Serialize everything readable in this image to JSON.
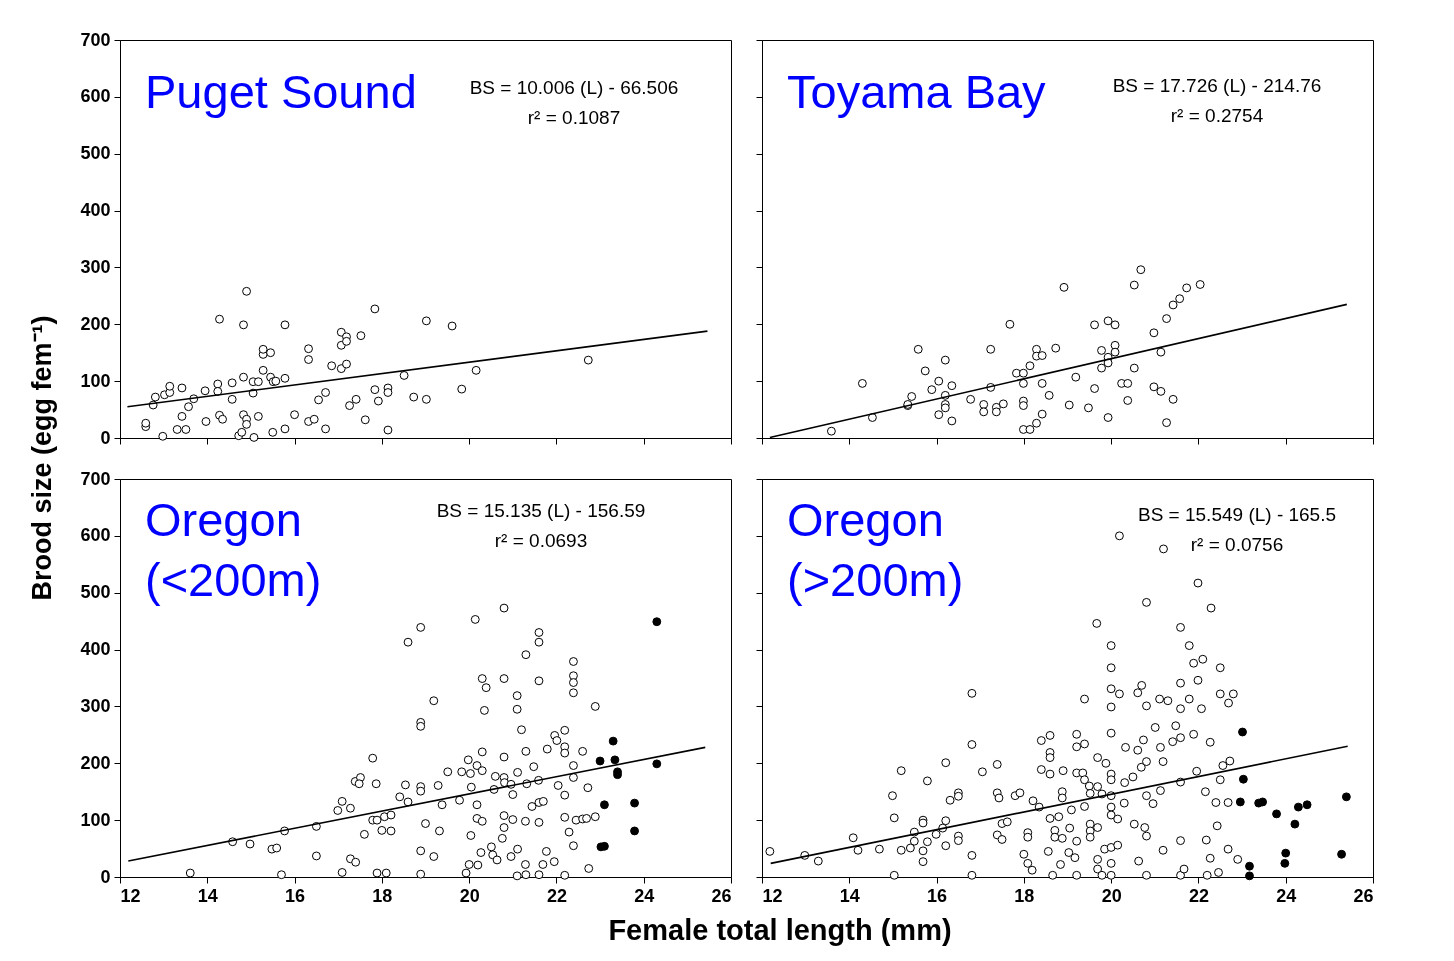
{
  "chart_data": [
    {
      "type": "scatter",
      "title": "Puget Sound",
      "ylabel": "Brood size (egg fem⁻¹)",
      "annotations": [
        "BS = 10.006 (L) - 66.506",
        "r² = 0.1087"
      ],
      "xlim": [
        12,
        26
      ],
      "ylim": [
        0,
        700
      ],
      "xticks": [
        12,
        14,
        16,
        18,
        20,
        22,
        24,
        26
      ],
      "yticks": [
        0,
        100,
        200,
        300,
        400,
        500,
        600,
        700
      ],
      "tick_labels": "y",
      "series": [
        {
          "color": "#ffffff",
          "marker": "circle",
          "x": [
            12.59,
            12.59,
            12.98,
            12.76,
            12.81,
            13.02,
            13.14,
            13.14,
            13.31,
            13.51,
            13.42,
            13.42,
            13.57,
            13.69,
            13.95,
            13.97,
            14.24,
            14.24,
            14.28,
            14.35,
            14.28,
            14.57,
            14.57,
            14.83,
            14.83,
            14.9,
            14.83,
            14.9,
            14.9,
            14.72,
            14.79,
            15.07,
            15.05,
            15.05,
            15.17,
            15.17,
            15.28,
            15.28,
            15.28,
            15.45,
            15.45,
            15.51,
            15.57,
            15.5,
            15.78,
            15.78,
            15.78,
            16.0,
            16.32,
            16.32,
            16.32,
            16.45,
            16.55,
            16.71,
            16.71,
            16.85,
            17.07,
            17.07,
            17.07,
            17.19,
            17.19,
            17.19,
            17.26,
            17.41,
            17.52,
            17.62,
            17.84,
            17.84,
            17.92,
            18.14,
            18.14,
            18.14,
            18.51,
            18.73,
            19.02,
            19.02,
            19.61,
            19.83,
            20.16,
            22.73
          ],
          "values": [
            20,
            26,
            3,
            58,
            72,
            76,
            80,
            91,
            15,
            15,
            38,
            88,
            55,
            69,
            83,
            29,
            95,
            82,
            40,
            33,
            209,
            97,
            68,
            107,
            199,
            258,
            41,
            33,
            24,
            4,
            10,
            1,
            79,
            99,
            99,
            38,
            119,
            147,
            156,
            150,
            107,
            99,
            100,
            10,
            105,
            199,
            16,
            41,
            157,
            138,
            29,
            33,
            67,
            80,
            16,
            127,
            122,
            163,
            186,
            178,
            170,
            130,
            57,
            68,
            180,
            32,
            85,
            227,
            65,
            88,
            80,
            14,
            110,
            72,
            68,
            206,
            197,
            86,
            119,
            137
          ]
        },
        {
          "type": "line",
          "color": "#000000",
          "marker": "none",
          "x": [
            12.17,
            25.46
          ],
          "values": [
            55,
            188
          ]
        }
      ]
    },
    {
      "type": "scatter",
      "title": "Toyama Bay",
      "annotations": [
        "BS = 17.726 (L) - 214.76",
        "r² = 0.2754"
      ],
      "xlim": [
        12,
        26
      ],
      "ylim": [
        0,
        700
      ],
      "xticks": [
        12,
        14,
        16,
        18,
        20,
        22,
        24,
        26
      ],
      "yticks": [
        0,
        100,
        200,
        300,
        400,
        500,
        600,
        700
      ],
      "tick_labels": false,
      "series": [
        {
          "color": "#ffffff",
          "marker": "circle",
          "x": [
            13.59,
            14.3,
            14.53,
            15.34,
            15.34,
            15.43,
            15.58,
            15.74,
            15.89,
            16.05,
            16.05,
            16.2,
            16.2,
            16.2,
            16.2,
            16.35,
            16.35,
            16.78,
            17.08,
            17.08,
            17.24,
            17.24,
            17.37,
            17.37,
            17.53,
            17.68,
            17.83,
            17.99,
            17.99,
            17.99,
            17.99,
            17.99,
            18.14,
            18.14,
            18.29,
            18.29,
            18.42,
            18.42,
            18.42,
            18.29,
            18.58,
            18.73,
            18.92,
            19.04,
            19.19,
            19.48,
            19.62,
            19.62,
            19.78,
            19.78,
            19.93,
            19.93,
            19.93,
            19.93,
            20.09,
            20.09,
            20.09,
            20.24,
            20.38,
            20.38,
            20.53,
            20.53,
            20.68,
            20.98,
            20.98,
            21.14,
            21.14,
            21.27,
            21.27,
            21.42,
            21.42,
            21.57,
            21.73,
            22.04
          ],
          "values": [
            12,
            96,
            36,
            57,
            59,
            73,
            156,
            118,
            85,
            100,
            41,
            137,
            75,
            59,
            53,
            92,
            30,
            68,
            59,
            46,
            89,
            156,
            54,
            46,
            60,
            200,
            114,
            114,
            96,
            65,
            57,
            15,
            15,
            127,
            156,
            144,
            145,
            96,
            42,
            26,
            75,
            158,
            265,
            58,
            107,
            53,
            199,
            87,
            154,
            123,
            206,
            142,
            132,
            36,
            199,
            163,
            151,
            96,
            96,
            66,
            269,
            123,
            296,
            185,
            90,
            151,
            82,
            210,
            27,
            234,
            68,
            245,
            264,
            270
          ]
        },
        {
          "type": "line",
          "color": "#000000",
          "marker": "none",
          "x": [
            12.18,
            25.4
          ],
          "values": [
            1,
            235
          ]
        }
      ]
    },
    {
      "type": "scatter",
      "title": "Oregon (<200m)",
      "xlabel": "Female total length (mm)",
      "annotations": [
        "BS = 15.135 (L) - 156.59",
        "r² = 0.0693"
      ],
      "xlim": [
        12,
        26
      ],
      "ylim": [
        0,
        700
      ],
      "xticks": [
        12,
        14,
        16,
        18,
        20,
        22,
        24,
        26
      ],
      "yticks": [
        0,
        100,
        200,
        300,
        400,
        500,
        600,
        700
      ],
      "series": [
        {
          "color": "#ffffff",
          "marker": "circle",
          "x": [
            13.61,
            14.58,
            14.98,
            15.48,
            15.59,
            15.7,
            15.77,
            16.5,
            16.5,
            16.99,
            17.09,
            17.09,
            17.28,
            17.28,
            17.4,
            17.39,
            17.51,
            17.48,
            17.6,
            17.79,
            17.87,
            17.79,
            17.89,
            17.89,
            18.0,
            18.06,
            18.1,
            18.21,
            18.21,
            18.41,
            18.54,
            18.6,
            18.6,
            18.89,
            18.89,
            18.89,
            18.89,
            18.89,
            18.89,
            18.89,
            19.0,
            19.19,
            19.19,
            19.29,
            19.32,
            19.38,
            19.51,
            19.78,
            19.83,
            19.93,
            20.0,
            20.04,
            19.98,
            20.03,
            20.05,
            20.14,
            20.18,
            20.18,
            20.18,
            20.2,
            20.3,
            20.3,
            20.3,
            20.3,
            20.35,
            20.27,
            20.39,
            20.51,
            20.54,
            20.64,
            20.57,
            20.6,
            20.8,
            20.8,
            20.8,
            20.8,
            20.8,
            20.8,
            20.76,
            20.81,
            20.96,
            20.96,
            21.0,
            21.0,
            21.1,
            21.1,
            21.11,
            21.1,
            21.11,
            21.2,
            21.3,
            21.3,
            21.32,
            21.29,
            21.29,
            21.3,
            21.44,
            21.48,
            21.6,
            21.6,
            21.6,
            21.59,
            21.6,
            21.6,
            21.7,
            21.6,
            21.69,
            21.79,
            21.77,
            21.96,
            22.01,
            21.95,
            22.04,
            22.19,
            22.19,
            22.19,
            22.19,
            22.19,
            22.19,
            22.29,
            22.39,
            22.39,
            22.39,
            22.39,
            22.39,
            22.39,
            22.39,
            22.45,
            22.6,
            22.6,
            22.69,
            22.72,
            22.74,
            22.89,
            22.89
          ],
          "values": [
            7,
            62,
            58,
            49,
            51,
            4,
            81,
            89,
            37,
            117,
            133,
            8,
            121,
            32,
            26,
            168,
            175,
            164,
            75,
            209,
            164,
            100,
            100,
            7,
            82,
            106,
            7,
            81,
            109,
            141,
            162,
            413,
            132,
            439,
            272,
            265,
            159,
            151,
            46,
            5,
            94,
            310,
            36,
            161,
            81,
            127,
            185,
            135,
            185,
            7,
            22,
            73,
            206,
            182,
            158,
            453,
            196,
            127,
            103,
            21,
            349,
            220,
            187,
            98,
            293,
            43,
            333,
            53,
            39,
            30,
            154,
            177,
            473,
            349,
            211,
            175,
            108,
            87,
            68,
            166,
            163,
            36,
            101,
            145,
            319,
            295,
            49,
            2,
            184,
            259,
            391,
            221,
            164,
            98,
            22,
            4,
            124,
            194,
            430,
            413,
            345,
            170,
            96,
            131,
            133,
            4,
            22,
            225,
            45,
            249,
            240,
            27,
            161,
            258,
            229,
            218,
            144,
            105,
            3,
            79,
            379,
            354,
            342,
            324,
            196,
            175,
            55,
            100,
            221,
            102,
            103,
            157,
            15,
            300,
            106
          ]
        },
        {
          "color": "#000000",
          "marker": "circle",
          "x": [
            24.3,
            23.3,
            23.0,
            23.34,
            23.4,
            23.4,
            24.3,
            23.1,
            23.79,
            23.79,
            23.02,
            23.1
          ],
          "values": [
            449,
            239,
            204,
            206,
            185,
            180,
            199,
            127,
            130,
            81,
            53,
            54
          ]
        },
        {
          "type": "line",
          "color": "#000000",
          "marker": "none",
          "x": [
            12.19,
            25.41
          ],
          "values": [
            28,
            228
          ]
        }
      ]
    },
    {
      "type": "scatter",
      "title": "Oregon (>200m)",
      "annotations": [
        "BS = 15.549 (L) - 165.5",
        "r² = 0.0756"
      ],
      "xlim": [
        12,
        26
      ],
      "ylim": [
        0,
        700
      ],
      "xticks": [
        12,
        14,
        16,
        18,
        20,
        22,
        24,
        26
      ],
      "yticks": [
        0,
        100,
        200,
        300,
        400,
        500,
        600,
        700
      ],
      "tick_labels": "x",
      "series": [
        {
          "color": "#ffffff",
          "marker": "circle",
          "x": [
            12.18,
            12.98,
            13.29,
            14.09,
            14.2,
            14.69,
            15.03,
            14.99,
            15.03,
            15.19,
            15.19,
            15.4,
            15.49,
            15.49,
            15.69,
            15.69,
            15.69,
            15.69,
            15.79,
            15.79,
            15.99,
            16.14,
            16.21,
            16.21,
            16.21,
            16.31,
            16.5,
            16.5,
            16.5,
            16.5,
            16.81,
            16.81,
            16.81,
            16.81,
            17.05,
            17.39,
            17.39,
            17.43,
            17.39,
            17.5,
            17.5,
            17.62,
            17.8,
            17.91,
            18.21,
            18.09,
            18.09,
            18.0,
            18.09,
            18.19,
            18.35,
            18.4,
            18.6,
            18.6,
            18.6,
            18.6,
            18.4,
            18.56,
            18.6,
            18.71,
            18.71,
            18.66,
            18.8,
            18.84,
            18.88,
            18.88,
            18.88,
            18.9,
            19.03,
            19.09,
            19.05,
            19.17,
            19.21,
            19.21,
            19.21,
            19.21,
            19.21,
            19.35,
            19.39,
            19.39,
            19.39,
            19.39,
            19.5,
            19.52,
            19.52,
            19.52,
            19.52,
            19.67,
            19.69,
            19.69,
            19.69,
            19.69,
            19.69,
            19.79,
            19.79,
            19.85,
            19.88,
            20.0,
            20.0,
            20.0,
            20.0,
            20.0,
            20.0,
            20.0,
            20.0,
            20.0,
            20.0,
            20.0,
            20.0,
            20.0,
            20.15,
            20.19,
            20.19,
            20.15,
            20.3,
            20.31,
            20.33,
            20.5,
            20.53,
            20.63,
            20.61,
            20.61,
            20.7,
            20.74,
            20.69,
            20.81,
            20.81,
            20.81,
            20.81,
            20.81,
            20.81,
            20.77,
            20.96,
            21.01,
            21.11,
            21.13,
            21.13,
            21.19,
            21.19,
            21.2,
            21.3,
            21.41,
            21.48,
            21.59,
            21.59,
            21.59,
            21.59,
            21.59,
            21.59,
            21.59,
            21.67,
            21.79,
            21.79,
            21.89,
            21.89,
            21.96,
            21.99,
            21.99,
            22.07,
            22.1,
            22.16,
            22.18,
            22.27,
            22.29,
            22.27,
            22.4,
            22.43,
            22.5,
            22.5,
            22.5,
            22.46,
            22.56,
            22.68,
            22.69,
            22.68,
            22.72,
            22.8,
            22.9,
            22.2
          ],
          "values": [
            45,
            38,
            28,
            69,
            47,
            49,
            3,
            143,
            104,
            187,
            47,
            51,
            79,
            63,
            100,
            95,
            46,
            27,
            169,
            62,
            75,
            86,
            201,
            99,
            55,
            135,
            148,
            142,
            72,
            64,
            323,
            233,
            38,
            3,
            185,
            198,
            148,
            139,
            74,
            66,
            94,
            97,
            143,
            148,
            134,
            78,
            70,
            40,
            24,
            12,
            123,
            240,
            249,
            219,
            210,
            181,
            189,
            45,
            103,
            82,
            70,
            3,
            106,
            22,
            150,
            139,
            68,
            187,
            43,
            118,
            86,
            34,
            251,
            229,
            183,
            63,
            3,
            183,
            313,
            234,
            171,
            124,
            160,
            147,
            93,
            81,
            70,
            446,
            210,
            159,
            87,
            31,
            14,
            146,
            3,
            49,
            200,
            407,
            368,
            331,
            299,
            253,
            181,
            171,
            143,
            123,
            109,
            52,
            24,
            3,
            56,
            600,
            322,
            102,
            130,
            166,
            228,
            176,
            93,
            28,
            324,
            223,
            337,
            241,
            193,
            483,
            301,
            203,
            143,
            72,
            3,
            87,
            129,
            263,
            313,
            228,
            152,
            203,
            47,
            577,
            310,
            238,
            266,
            439,
            341,
            296,
            245,
            167,
            64,
            3,
            14,
            407,
            313,
            251,
            376,
            186,
            346,
            517,
            296,
            383,
            150,
            65,
            237,
            473,
            33,
            131,
            90,
            368,
            322,
            171,
            8,
            196,
            131,
            306,
            49,
            204,
            322,
            31,
            3
          ]
        },
        {
          "color": "#000000",
          "marker": "circle",
          "x": [
            23.01,
            23.03,
            22.96,
            23.38,
            23.47,
            23.79,
            24.29,
            24.49,
            24.21,
            25.39,
            24.0,
            23.98,
            23.17,
            23.17,
            25.28
          ],
          "values": [
            255,
            172,
            132,
            130,
            132,
            111,
            123,
            127,
            93,
            141,
            42,
            24,
            19,
            2,
            40
          ]
        },
        {
          "type": "line",
          "color": "#000000",
          "marker": "none",
          "x": [
            12.2,
            25.42
          ],
          "values": [
            24,
            230
          ]
        }
      ]
    }
  ]
}
